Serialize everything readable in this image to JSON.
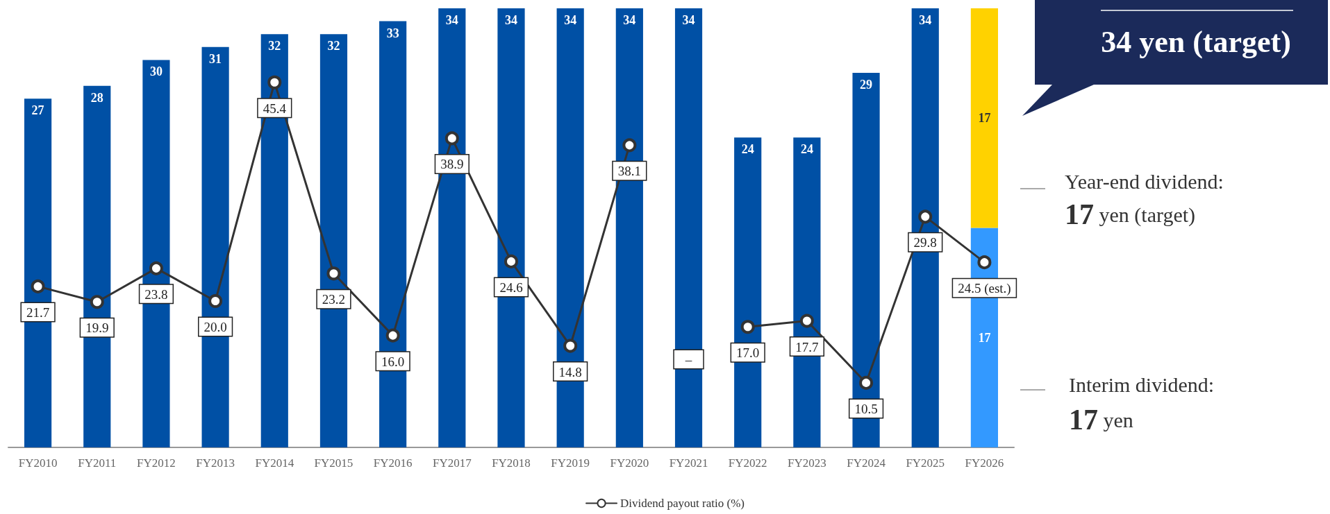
{
  "chart_data": {
    "type": "bar",
    "stacked": true,
    "data_labels": true,
    "marker": "circle",
    "legend": "bottom",
    "tick_labels": "x",
    "categories": [
      "FY2010",
      "FY2011",
      "FY2012",
      "FY2013",
      "FY2014",
      "FY2015",
      "FY2016",
      "FY2017",
      "FY2018",
      "FY2019",
      "FY2020",
      "FY2021",
      "FY2022",
      "FY2023",
      "FY2024",
      "FY2025",
      "FY2026"
    ],
    "ylim": [
      0,
      34
    ],
    "y2lim": [
      3,
      54
    ],
    "series": [
      {
        "color": "#0050a5",
        "values": [
          27,
          28,
          30,
          31,
          32,
          32,
          33,
          34,
          34,
          34,
          34,
          34,
          24,
          24,
          29,
          34,
          null
        ]
      },
      {
        "color": "#3399ff",
        "values": [
          null,
          null,
          null,
          null,
          null,
          null,
          null,
          null,
          null,
          null,
          null,
          null,
          null,
          null,
          null,
          null,
          17
        ]
      },
      {
        "color": "#ffd200",
        "values": [
          null,
          null,
          null,
          null,
          null,
          null,
          null,
          null,
          null,
          null,
          null,
          null,
          null,
          null,
          null,
          null,
          17
        ]
      },
      {
        "type": "line",
        "name": "Dividend payout ratio (%)",
        "color": "#333333",
        "axis": "y2",
        "values": [
          21.7,
          19.9,
          23.8,
          20.0,
          45.4,
          23.2,
          16.0,
          38.9,
          24.6,
          14.8,
          38.1,
          null,
          17.0,
          17.7,
          10.5,
          29.8,
          24.5
        ],
        "value_labels": [
          "21.7",
          "19.9",
          "23.8",
          "20.0",
          "45.4",
          "23.2",
          "16.0",
          "38.9",
          "24.6",
          "14.8",
          "38.1",
          "–",
          "17.0",
          "17.7",
          "10.5",
          "29.8",
          "24.5 (est.)"
        ]
      }
    ],
    "annotations": [
      "34 yen (target)",
      "Year-end dividend:",
      "17 yen (target)",
      "Interim dividend:",
      "17 yen"
    ]
  }
}
